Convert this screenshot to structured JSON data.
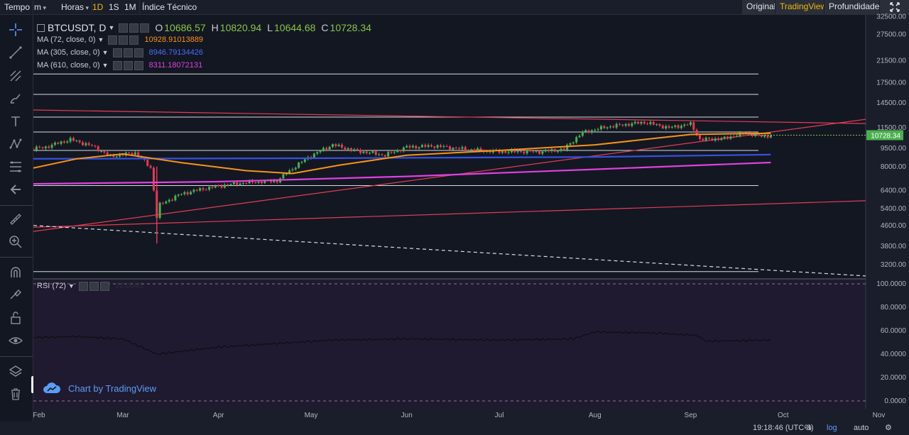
{
  "topbar": {
    "tempo": "Tempo",
    "minutes": "m",
    "hours": "Horas",
    "intervals": [
      "1D",
      "1S",
      "1M"
    ],
    "active_interval": "1D",
    "indicator": "Índice Técnico",
    "views": [
      "Original",
      "TradingView",
      "Profundidade"
    ],
    "active_view": "TradingView"
  },
  "icons": {
    "left": [
      "crosshair-icon",
      "trend-line-icon",
      "fork-icon",
      "brush-icon",
      "text-icon",
      "pattern-icon",
      "fib-icon",
      "back-arrow-icon",
      "ruler-icon",
      "zoom-in-icon",
      "magnet-icon",
      "lock-drawing-icon",
      "unlock-icon",
      "eye-icon",
      "layers-icon",
      "trash-icon"
    ],
    "fullscreen": "fullscreen-icon",
    "tv_logo": "tradingview-cloud-icon"
  },
  "legend": {
    "symbol": "BTCUSDT, D",
    "o_label": "O",
    "o": "10686.57",
    "h_label": "H",
    "h": "10820.94",
    "l_label": "L",
    "l": "10644.68",
    "c_label": "C",
    "c": "10728.34",
    "ma": [
      {
        "label": "MA (72, close, 0)",
        "value": "10928.91013889",
        "color": "#f7931a"
      },
      {
        "label": "MA (305, close, 0)",
        "value": "8946.79134426",
        "color": "#3452e0"
      },
      {
        "label": "MA (610, close, 0)",
        "value": "8311.18072131",
        "color": "#e040e0"
      }
    ],
    "rsi": {
      "label": "RSI (72)",
      "value": "52.0045"
    }
  },
  "credit": "Chart by TradingView",
  "bottom": {
    "time": "19:18:46 (UTC-3)",
    "percent": "%",
    "log": "log",
    "auto": "auto"
  },
  "colors": {
    "up": "#4caf50",
    "down": "#e23d55",
    "bg": "#131722",
    "rsi_bg": "#201a30"
  },
  "chart_data": {
    "type": "candlestick",
    "title": "BTCUSDT, D",
    "scale": "log",
    "price_axis": [
      "32500.00",
      "27500.00",
      "21500.00",
      "17500.00",
      "14500.00",
      "11500.00",
      "9500.00",
      "8000.00",
      "6400.00",
      "5400.00",
      "4600.00",
      "3800.00",
      "3200.00"
    ],
    "last_price": "10728.34",
    "x_ticks": [
      "Feb",
      "Mar",
      "Apr",
      "May",
      "Jun",
      "Jul",
      "Aug",
      "Sep",
      "Oct",
      "Nov"
    ],
    "rsi_axis": [
      "100.0000",
      "80.0000",
      "60.0000",
      "40.0000",
      "20.0000",
      "0.0000"
    ],
    "horizontal_levels": [
      19000,
      15700,
      12700,
      11050,
      9300,
      6700,
      3000
    ],
    "price_path": [
      [
        "2020-01-28",
        9300
      ],
      [
        "2020-02-05",
        9600
      ],
      [
        "2020-02-13",
        10300
      ],
      [
        "2020-02-20",
        9700
      ],
      [
        "2020-02-26",
        8800
      ],
      [
        "2020-03-05",
        9100
      ],
      [
        "2020-03-10",
        7900
      ],
      [
        "2020-03-12",
        5000
      ],
      [
        "2020-03-13",
        5600
      ],
      [
        "2020-03-20",
        6200
      ],
      [
        "2020-03-27",
        6500
      ],
      [
        "2020-04-02",
        6700
      ],
      [
        "2020-04-10",
        6900
      ],
      [
        "2020-04-20",
        7000
      ],
      [
        "2020-04-30",
        8700
      ],
      [
        "2020-05-08",
        9800
      ],
      [
        "2020-05-15",
        9300
      ],
      [
        "2020-05-25",
        8900
      ],
      [
        "2020-06-01",
        9600
      ],
      [
        "2020-06-10",
        9700
      ],
      [
        "2020-06-20",
        9400
      ],
      [
        "2020-07-01",
        9200
      ],
      [
        "2020-07-15",
        9200
      ],
      [
        "2020-07-22",
        9400
      ],
      [
        "2020-07-28",
        11000
      ],
      [
        "2020-08-05",
        11600
      ],
      [
        "2020-08-17",
        12100
      ],
      [
        "2020-08-25",
        11500
      ],
      [
        "2020-09-01",
        11900
      ],
      [
        "2020-09-04",
        10300
      ],
      [
        "2020-09-12",
        10400
      ],
      [
        "2020-09-19",
        11000
      ],
      [
        "2020-09-24",
        10600
      ],
      [
        "2020-09-27",
        10728
      ]
    ],
    "ma72_path": [
      [
        "2020-01-28",
        7700
      ],
      [
        "2020-02-15",
        8600
      ],
      [
        "2020-03-01",
        9000
      ],
      [
        "2020-03-20",
        8300
      ],
      [
        "2020-04-10",
        7700
      ],
      [
        "2020-04-25",
        7500
      ],
      [
        "2020-05-10",
        8100
      ],
      [
        "2020-06-01",
        8900
      ],
      [
        "2020-07-01",
        9300
      ],
      [
        "2020-08-01",
        9800
      ],
      [
        "2020-09-01",
        10800
      ],
      [
        "2020-09-27",
        10929
      ]
    ],
    "ma305_path": [
      [
        "2020-01-28",
        8600
      ],
      [
        "2020-05-01",
        8650
      ],
      [
        "2020-08-01",
        8750
      ],
      [
        "2020-09-27",
        8947
      ]
    ],
    "ma610_path": [
      [
        "2020-01-28",
        6800
      ],
      [
        "2020-04-01",
        6950
      ],
      [
        "2020-06-01",
        7300
      ],
      [
        "2020-08-01",
        7800
      ],
      [
        "2020-09-27",
        8311
      ]
    ],
    "rsi_path": [
      [
        "2020-01-28",
        54
      ],
      [
        "2020-02-15",
        55
      ],
      [
        "2020-03-01",
        53
      ],
      [
        "2020-03-12",
        40
      ],
      [
        "2020-04-01",
        46
      ],
      [
        "2020-05-08",
        52
      ],
      [
        "2020-06-01",
        53
      ],
      [
        "2020-07-01",
        52
      ],
      [
        "2020-07-25",
        53
      ],
      [
        "2020-08-01",
        59
      ],
      [
        "2020-08-20",
        58
      ],
      [
        "2020-09-03",
        56
      ],
      [
        "2020-09-06",
        51
      ],
      [
        "2020-09-27",
        52
      ]
    ]
  }
}
